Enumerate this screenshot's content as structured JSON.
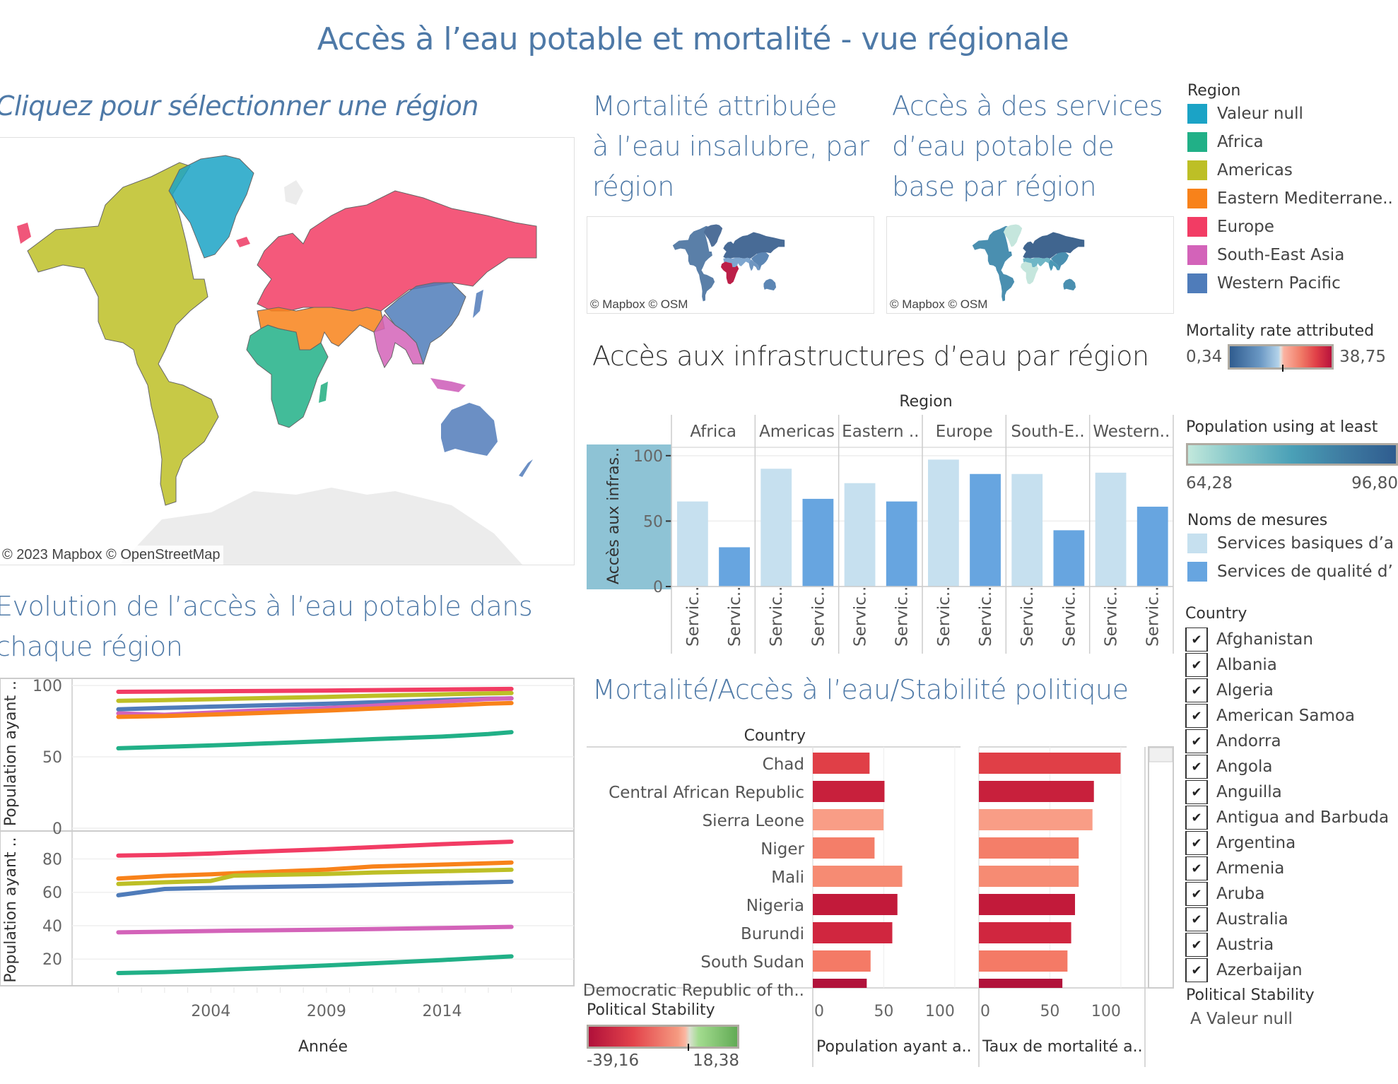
{
  "dashboard": {
    "title": "Accès à l’eau potable et mortalité - vue régionale"
  },
  "map_main": {
    "title": "Cliquez pour sélectionner une région",
    "attribution": "© 2023 Mapbox © OpenStreetMap"
  },
  "map_mortality": {
    "title_lines": [
      "Mortalité attribuée",
      "à l’eau insalubre, par",
      "région"
    ],
    "attribution": "© Mapbox © OSM"
  },
  "map_access": {
    "title_lines": [
      "Accès à des services",
      "d’eau potable de",
      "base par région"
    ],
    "attribution": "© Mapbox © OSM"
  },
  "legends": {
    "region": {
      "title": "Region",
      "items": [
        {
          "label": "Valeur null",
          "color": "#1ba3c6"
        },
        {
          "label": "Africa",
          "color": "#21b087"
        },
        {
          "label": "Americas",
          "color": "#bdbf26"
        },
        {
          "label": "Eastern Mediterrane..",
          "color": "#f8821a"
        },
        {
          "label": "Europe",
          "color": "#f23c64"
        },
        {
          "label": "South-East Asia",
          "color": "#d363b9"
        },
        {
          "label": "Western Pacific",
          "color": "#4f7cba"
        }
      ]
    },
    "mortality_rate": {
      "title": "Mortality rate attributed",
      "min": "0,34",
      "max": "38,75"
    },
    "population_access": {
      "title": "Population using at least",
      "min": "64,28",
      "max": "96,80"
    },
    "measures": {
      "title": "Noms de mesures",
      "items": [
        {
          "label": "Services basiques d’a",
          "color": "#c6e0ef"
        },
        {
          "label": "Services de qualité d’",
          "color": "#67a5e0"
        }
      ]
    },
    "country_filter": {
      "title": "Country",
      "items": [
        "Afghanistan",
        "Albania",
        "Algeria",
        "American Samoa",
        "Andorra",
        "Angola",
        "Anguilla",
        "Antigua and Barbuda",
        "Argentina",
        "Armenia",
        "Aruba",
        "Australia",
        "Austria",
        "Azerbaijan"
      ]
    },
    "political_stability_filter": {
      "title": "Political Stability",
      "value": "A Valeur null"
    },
    "political_stability_scale": {
      "title": "Political Stability",
      "min": "-39,16",
      "max": "18,38"
    }
  },
  "chart_data": [
    {
      "type": "bar",
      "title": "Accès aux infrastructures d’eau par région",
      "header": "Region",
      "ylabel": "Accès aux infras..",
      "ylim": [
        0,
        100
      ],
      "yticks": [
        "0",
        "50",
        "100"
      ],
      "categories": [
        "Africa",
        "Americas",
        "Eastern ..",
        "Europe",
        "South-E..",
        "Western.."
      ],
      "xtick_label": "Servic..",
      "series": [
        {
          "name": "Services basiques d’a",
          "color": "#c6e0ef",
          "values": [
            65,
            90,
            79,
            97,
            86,
            87
          ]
        },
        {
          "name": "Services de qualité d’",
          "color": "#67a5e0",
          "values": [
            30,
            67,
            65,
            86,
            43,
            61
          ]
        }
      ]
    },
    {
      "type": "line",
      "title": "Evolution de l’accès à l’eau potable dans chaque région",
      "xlabel": "Année",
      "x": [
        2000,
        2002,
        2004,
        2005,
        2009,
        2011,
        2014,
        2016,
        2017
      ],
      "xticks": [
        "2004",
        "2009",
        "2014"
      ],
      "panels": [
        {
          "ylabel": "Population ayant ..",
          "ylim": [
            0,
            105
          ],
          "yticks": [
            "0",
            "50",
            "100"
          ],
          "series": [
            {
              "name": "Europe",
              "color": "#f23c64",
              "values": [
                95.6,
                95.8,
                96.0,
                96.1,
                96.5,
                96.8,
                97.2,
                97.5,
                97.6
              ]
            },
            {
              "name": "Americas",
              "color": "#bdbf26",
              "values": [
                89.3,
                89.8,
                90.4,
                90.8,
                92.0,
                92.8,
                93.8,
                94.5,
                94.7
              ]
            },
            {
              "name": "Western Pacific",
              "color": "#4f7cba",
              "values": [
                83.3,
                84.3,
                85.2,
                85.6,
                87.2,
                88.2,
                89.8,
                90.8,
                91.0
              ]
            },
            {
              "name": "South-East Asia",
              "color": "#d363b9",
              "values": [
                80.5,
                79.5,
                81.0,
                81.8,
                84.2,
                85.8,
                88.6,
                90.6,
                91.0
              ]
            },
            {
              "name": "Eastern Mediterranean",
              "color": "#f8821a",
              "values": [
                78.0,
                78.6,
                79.6,
                80.1,
                82.4,
                83.8,
                85.8,
                87.3,
                87.7
              ]
            },
            {
              "name": "Africa",
              "color": "#21b087",
              "values": [
                56.0,
                57.0,
                58.0,
                58.6,
                61.0,
                62.4,
                64.2,
                66.0,
                67.3
              ]
            }
          ]
        },
        {
          "ylabel": "Population ayant ..",
          "ylim": [
            4,
            95
          ],
          "yticks": [
            "20",
            "40",
            "60",
            "80"
          ],
          "series": [
            {
              "name": "Europe",
              "color": "#f23c64",
              "values": [
                82.0,
                82.4,
                83.2,
                83.8,
                85.8,
                87.0,
                88.8,
                89.8,
                90.3
              ]
            },
            {
              "name": "Eastern Mediterranean",
              "color": "#f8821a",
              "values": [
                68.2,
                69.8,
                70.8,
                71.4,
                73.6,
                75.4,
                76.6,
                77.4,
                77.8
              ]
            },
            {
              "name": "Americas",
              "color": "#bdbf26",
              "values": [
                65.0,
                66.0,
                66.8,
                70.0,
                71.0,
                71.8,
                72.6,
                73.2,
                73.5
              ]
            },
            {
              "name": "Western Pacific",
              "color": "#4f7cba",
              "values": [
                58.2,
                62.0,
                62.6,
                62.9,
                63.8,
                64.4,
                65.4,
                66.0,
                66.3
              ]
            },
            {
              "name": "South-East Asia",
              "color": "#d363b9",
              "values": [
                36.0,
                36.4,
                36.8,
                37.0,
                37.6,
                38.0,
                38.6,
                39.1,
                39.3
              ]
            },
            {
              "name": "Africa",
              "color": "#21b087",
              "values": [
                11.6,
                12.2,
                13.2,
                13.8,
                16.2,
                17.4,
                19.4,
                20.9,
                21.6
              ]
            }
          ]
        }
      ]
    },
    {
      "type": "bar",
      "orientation": "horizontal",
      "title": "Mortalité/Accès à l’eau/Stabilité politique",
      "row_header": "Country",
      "categories": [
        "Chad",
        "Central African Republic",
        "Sierra Leone",
        "Niger",
        "Mali",
        "Nigeria",
        "Burundi",
        "South Sudan",
        "Democratic Republic of th.."
      ],
      "colors": [
        "#e03f47",
        "#c8203c",
        "#f99d86",
        "#f47e69",
        "#f68b73",
        "#c21a3a",
        "#d0263f",
        "#f47a66",
        "#b1133b"
      ],
      "panels": [
        {
          "xlabel": "Population ayant a..",
          "xlim": [
            0,
            100
          ],
          "xticks": [
            "0",
            "50",
            "100"
          ],
          "values": [
            40,
            50.5,
            49.8,
            43.5,
            63,
            59.6,
            56,
            40.7,
            38
          ]
        },
        {
          "xlabel": "Taux de mortalité a..",
          "xlim": [
            0,
            100
          ],
          "xticks": [
            "0",
            "50",
            "100"
          ],
          "values": [
            99.8,
            81,
            80,
            70.3,
            70.3,
            67.7,
            65,
            62.4,
            58.8
          ]
        }
      ]
    }
  ]
}
